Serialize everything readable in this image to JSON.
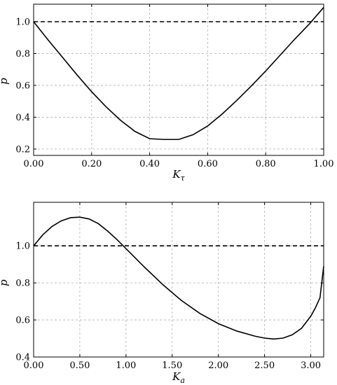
{
  "chart_data": [
    {
      "type": "line",
      "xlabel": "K",
      "xlabel_sub": "τ",
      "ylabel": "p",
      "xlim": [
        0.0,
        1.0
      ],
      "ylim": [
        0.16,
        1.11
      ],
      "xticks": [
        0.0,
        0.2,
        0.4,
        0.6,
        0.8,
        1.0
      ],
      "xtick_labels": [
        "0.00",
        "0.20",
        "0.40",
        "0.60",
        "0.80",
        "1.00"
      ],
      "yticks": [
        0.2,
        0.4,
        0.6,
        0.8,
        1.0
      ],
      "ytick_labels": [
        "0.2",
        "0.4",
        "0.6",
        "0.8",
        "1.0"
      ],
      "grid": true,
      "reference_line": {
        "y": 1.0,
        "style": "dashed"
      },
      "series": [
        {
          "x": [
            0.0,
            0.05,
            0.1,
            0.15,
            0.2,
            0.25,
            0.3,
            0.35,
            0.4,
            0.45,
            0.5,
            0.55,
            0.6,
            0.65,
            0.7,
            0.75,
            0.8,
            0.85,
            0.9,
            0.95,
            1.0
          ],
          "y": [
            1.0,
            0.885,
            0.775,
            0.665,
            0.56,
            0.465,
            0.38,
            0.31,
            0.265,
            0.26,
            0.26,
            0.29,
            0.345,
            0.42,
            0.505,
            0.595,
            0.69,
            0.79,
            0.89,
            0.985,
            1.09
          ]
        }
      ]
    },
    {
      "type": "line",
      "xlabel": "K",
      "xlabel_sub": "a",
      "ylabel": "p",
      "xlim": [
        0.0,
        3.14
      ],
      "ylim": [
        0.4,
        1.235
      ],
      "xticks": [
        0.0,
        0.5,
        1.0,
        1.5,
        2.0,
        2.5,
        3.0
      ],
      "xtick_labels": [
        "0.00",
        "0.50",
        "1.00",
        "1.50",
        "2.00",
        "2.50",
        "3.00"
      ],
      "yticks": [
        0.4,
        0.6,
        0.8,
        1.0
      ],
      "ytick_labels": [
        "0.4",
        "0.6",
        "0.8",
        "1.0"
      ],
      "grid": true,
      "reference_line": {
        "y": 1.0,
        "style": "dashed"
      },
      "series": [
        {
          "x": [
            0.0,
            0.1,
            0.2,
            0.3,
            0.4,
            0.5,
            0.6,
            0.7,
            0.8,
            0.9,
            1.0,
            1.2,
            1.4,
            1.6,
            1.8,
            2.0,
            2.2,
            2.4,
            2.5,
            2.6,
            2.7,
            2.8,
            2.9,
            3.0,
            3.05,
            3.1,
            3.14
          ],
          "y": [
            1.0,
            1.06,
            1.105,
            1.135,
            1.152,
            1.155,
            1.145,
            1.12,
            1.08,
            1.035,
            0.985,
            0.885,
            0.79,
            0.705,
            0.635,
            0.58,
            0.54,
            0.512,
            0.502,
            0.497,
            0.502,
            0.52,
            0.555,
            0.62,
            0.665,
            0.72,
            0.89
          ]
        }
      ]
    }
  ]
}
